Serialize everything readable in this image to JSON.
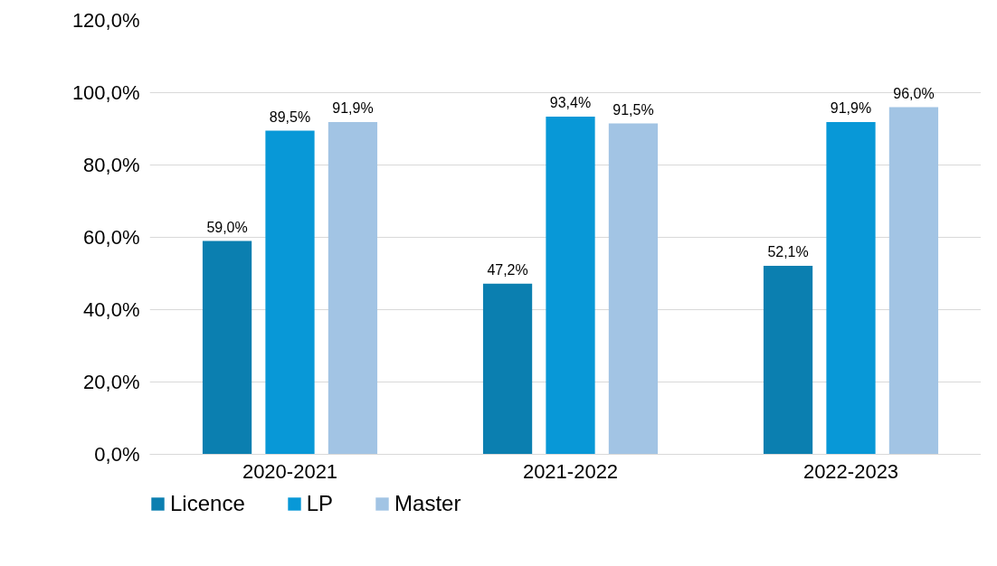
{
  "chart_data": {
    "type": "bar",
    "categories": [
      "2020-2021",
      "2021-2022",
      "2022-2023"
    ],
    "series": [
      {
        "name": "Licence",
        "color": "#0b7fb0",
        "values": [
          59.0,
          47.2,
          52.1
        ],
        "value_labels": [
          "59,0%",
          "47,2%",
          "52,1%"
        ]
      },
      {
        "name": "LP",
        "color": "#0898d7",
        "values": [
          89.5,
          93.4,
          91.9
        ],
        "value_labels": [
          "89,5%",
          "93,4%",
          "91,9%"
        ]
      },
      {
        "name": "Master",
        "color": "#a2c4e4",
        "values": [
          91.9,
          91.5,
          96.0
        ],
        "value_labels": [
          "91,9%",
          "91,5%",
          "96,0%"
        ]
      }
    ],
    "ylim": [
      0,
      120
    ],
    "yticks": [
      {
        "value": 0,
        "label": "0,0%"
      },
      {
        "value": 20,
        "label": "20,0%"
      },
      {
        "value": 40,
        "label": "40,0%"
      },
      {
        "value": 60,
        "label": "60,0%"
      },
      {
        "value": 80,
        "label": "80,0%"
      },
      {
        "value": 100,
        "label": "100,0%"
      },
      {
        "value": 120,
        "label": "120,0%"
      }
    ],
    "grid": "y",
    "legend": "bottom"
  }
}
